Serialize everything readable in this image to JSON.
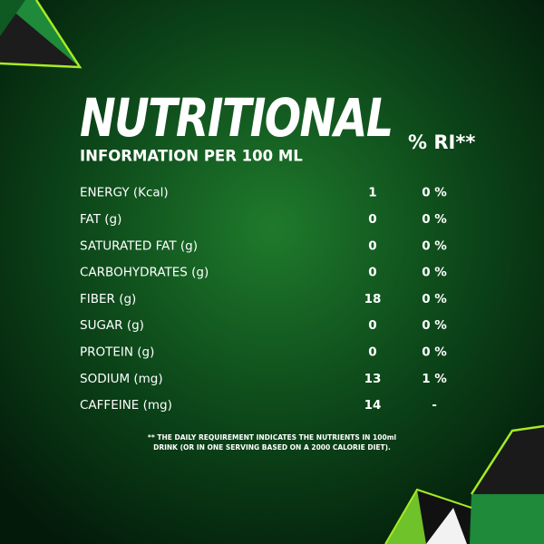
{
  "title": "NUTRITIONAL",
  "subtitle": "INFORMATION PER 100 ML",
  "ri_header": "% RI**",
  "table": {
    "rows": [
      [
        "ENERGY (Kcal)",
        "1",
        "0 %"
      ],
      [
        "FAT (g)",
        "0",
        "0 %"
      ],
      [
        "SATURATED  FAT (g)",
        "0",
        "0 %"
      ],
      [
        "CARBOHYDRATES (g)",
        "0",
        "0 %"
      ],
      [
        "FIBER (g)",
        "18",
        "0 %"
      ],
      [
        "SUGAR (g)",
        "0",
        "0 %"
      ],
      [
        "PROTEIN (g)",
        "0",
        "0 %"
      ],
      [
        "SODIUM (mg)",
        "13",
        "1 %"
      ],
      [
        "CAFFEINE (mg)",
        "14",
        "-"
      ]
    ]
  },
  "footnote": [
    "** THE DAILY REQUIREMENT INDICATES THE NUTRIENTS IN 100ml",
    "DRINK (OR IN ONE SERVING BASED ON A 2000 CALORIE DIET)."
  ]
}
